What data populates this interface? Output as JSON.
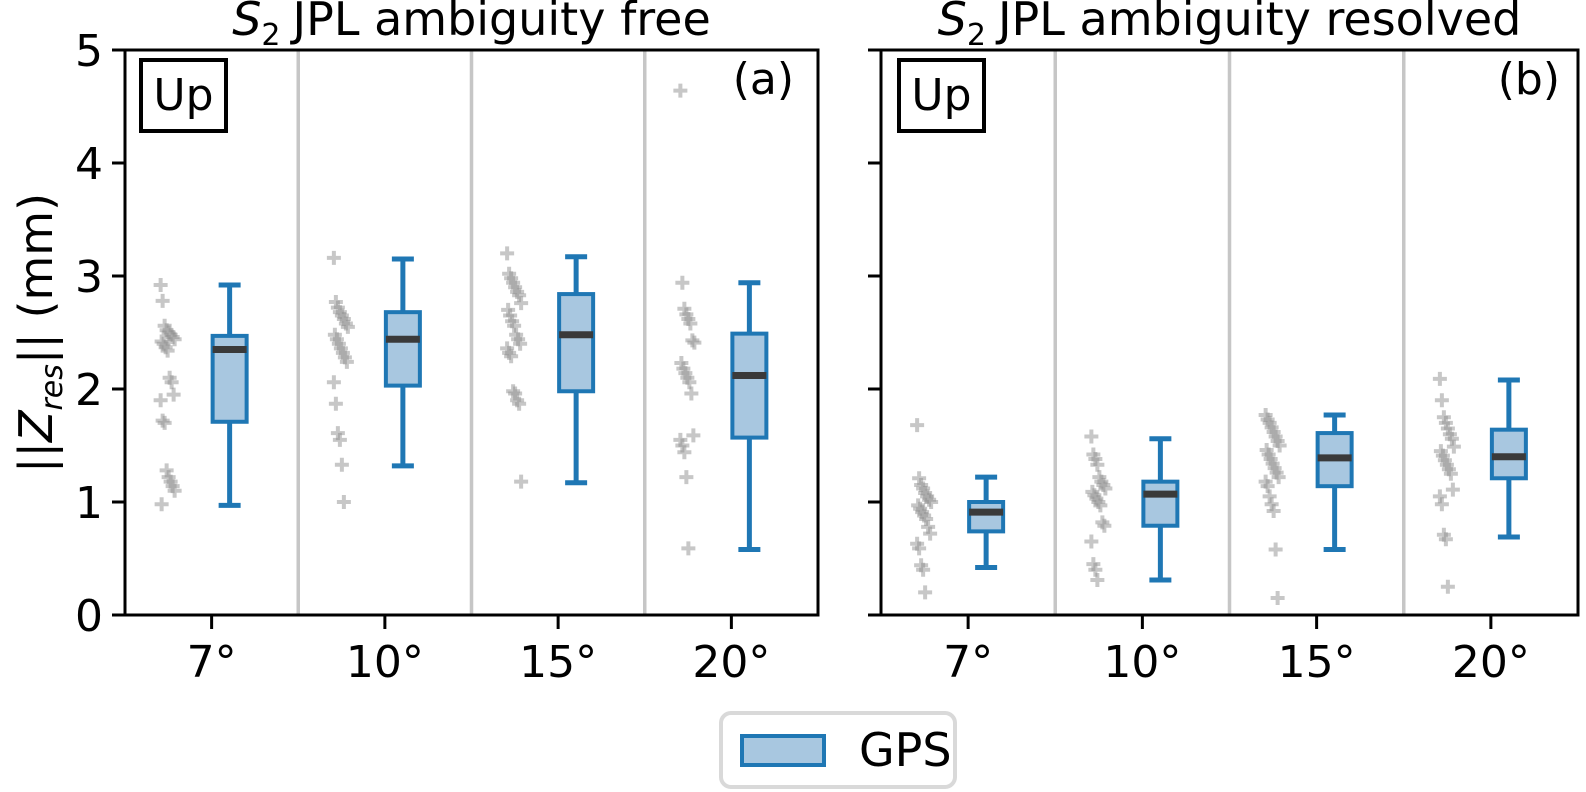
{
  "figure": {
    "kind": "boxplot-figure",
    "background": "#ffffff"
  },
  "ylabel": {
    "open": "||",
    "sym": "Z",
    "sub": "res",
    "close": "|| (mm)",
    "plain": "||Z_res|| (mm)"
  },
  "legend": {
    "label": "GPS"
  },
  "panels": [
    {
      "id": "a",
      "title": {
        "var": "S",
        "sub": "2",
        "rest": "JPL ambiguity free"
      },
      "corner": "(a)",
      "inset": "Up"
    },
    {
      "id": "b",
      "title": {
        "var": "S",
        "sub": "2",
        "rest": "JPL ambiguity resolved"
      },
      "corner": "(b)",
      "inset": "Up"
    }
  ],
  "style": {
    "box_fill": "#a8c7e0",
    "box_edge": "#1f77b4",
    "median": "#3a3a3a",
    "scatter": "#8f8f8f",
    "grid": "#c6c6c6",
    "axis": "#000000",
    "legend_border": "#d9d9d9"
  },
  "chart_data": [
    {
      "type": "box",
      "title": "S_2 JPL ambiguity free",
      "panel_label": "(a)",
      "inset_label": "Up",
      "series_name": "GPS",
      "categories": [
        "7°",
        "10°",
        "15°",
        "20°"
      ],
      "xlabel": "",
      "ylabel": "||Z_res|| (mm)",
      "ylim": [
        0,
        5
      ],
      "yticks": [
        0,
        1,
        2,
        3,
        4,
        5
      ],
      "ytick_labels": [
        "0",
        "1",
        "2",
        "3",
        "4",
        "5"
      ],
      "grid": "vertical category separators",
      "legend_position": "bottom center",
      "boxes": [
        {
          "whislo": 0.97,
          "q1": 1.71,
          "med": 2.35,
          "q3": 2.47,
          "whishi": 2.92
        },
        {
          "whislo": 1.32,
          "q1": 2.03,
          "med": 2.44,
          "q3": 2.68,
          "whishi": 3.15
        },
        {
          "whislo": 1.17,
          "q1": 1.98,
          "med": 2.48,
          "q3": 2.84,
          "whishi": 3.17
        },
        {
          "whislo": 0.58,
          "q1": 1.57,
          "med": 2.12,
          "q3": 2.49,
          "whishi": 2.94
        }
      ],
      "scatter": [
        [
          2.92,
          2.78,
          2.56,
          2.52,
          2.5,
          2.48,
          2.46,
          2.44,
          2.42,
          2.4,
          2.37,
          2.34,
          2.1,
          2.06,
          1.95,
          1.9,
          1.72,
          1.7,
          1.28,
          1.22,
          1.18,
          1.14,
          1.1,
          0.98
        ],
        [
          3.16,
          2.77,
          2.72,
          2.68,
          2.65,
          2.62,
          2.58,
          2.55,
          2.48,
          2.44,
          2.4,
          2.36,
          2.32,
          2.28,
          2.24,
          2.06,
          1.87,
          1.61,
          1.55,
          1.33,
          1.0
        ],
        [
          3.2,
          3.02,
          2.98,
          2.94,
          2.9,
          2.86,
          2.83,
          2.76,
          2.7,
          2.65,
          2.6,
          2.56,
          2.48,
          2.44,
          2.4,
          2.36,
          2.32,
          2.29,
          1.98,
          1.96,
          1.9,
          1.87,
          1.18
        ],
        [
          4.64,
          2.94,
          2.71,
          2.66,
          2.62,
          2.58,
          2.43,
          2.41,
          2.23,
          2.18,
          2.14,
          2.1,
          2.06,
          1.96,
          1.59,
          1.55,
          1.5,
          1.44,
          1.22,
          0.59
        ]
      ]
    },
    {
      "type": "box",
      "title": "S_2 JPL ambiguity resolved",
      "panel_label": "(b)",
      "inset_label": "Up",
      "series_name": "GPS",
      "categories": [
        "7°",
        "10°",
        "15°",
        "20°"
      ],
      "xlabel": "",
      "ylabel": "||Z_res|| (mm)",
      "ylim": [
        0,
        5
      ],
      "yticks": [
        0,
        1,
        2,
        3,
        4,
        5
      ],
      "ytick_labels": [
        "0",
        "1",
        "2",
        "3",
        "4",
        "5"
      ],
      "grid": "vertical category separators",
      "legend_position": "bottom center",
      "boxes": [
        {
          "whislo": 0.42,
          "q1": 0.74,
          "med": 0.91,
          "q3": 1.0,
          "whishi": 1.22
        },
        {
          "whislo": 0.31,
          "q1": 0.79,
          "med": 1.07,
          "q3": 1.18,
          "whishi": 1.56
        },
        {
          "whislo": 0.58,
          "q1": 1.14,
          "med": 1.39,
          "q3": 1.61,
          "whishi": 1.77
        },
        {
          "whislo": 0.69,
          "q1": 1.21,
          "med": 1.4,
          "q3": 1.64,
          "whishi": 2.08
        }
      ],
      "scatter": [
        [
          1.68,
          1.21,
          1.15,
          1.12,
          1.08,
          1.05,
          1.02,
          1.0,
          0.97,
          0.94,
          0.91,
          0.88,
          0.85,
          0.78,
          0.72,
          0.63,
          0.59,
          0.44,
          0.4,
          0.2
        ],
        [
          1.58,
          1.42,
          1.38,
          1.33,
          1.22,
          1.18,
          1.15,
          1.12,
          1.09,
          1.06,
          1.03,
          1.0,
          0.97,
          0.82,
          0.79,
          0.65,
          0.45,
          0.4,
          0.31
        ],
        [
          1.77,
          1.73,
          1.7,
          1.66,
          1.62,
          1.58,
          1.54,
          1.5,
          1.46,
          1.42,
          1.38,
          1.34,
          1.3,
          1.26,
          1.22,
          1.18,
          1.14,
          1.05,
          0.98,
          0.92,
          0.58,
          0.15
        ],
        [
          2.09,
          1.9,
          1.75,
          1.7,
          1.65,
          1.6,
          1.56,
          1.49,
          1.45,
          1.41,
          1.37,
          1.33,
          1.29,
          1.25,
          1.11,
          1.05,
          0.98,
          0.71,
          0.67,
          0.25
        ]
      ]
    }
  ]
}
